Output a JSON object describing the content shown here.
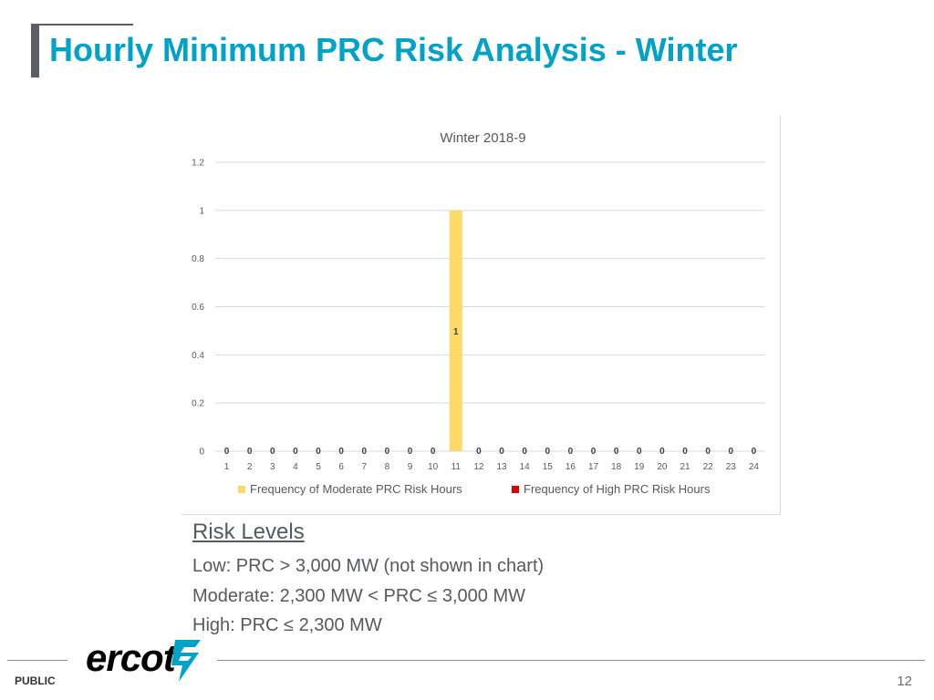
{
  "slide": {
    "title": "Hourly Minimum PRC Risk Analysis - Winter",
    "footer_label": "PUBLIC",
    "page_number": "12",
    "logo_text": "ercot",
    "colors": {
      "title": "#00a2c7",
      "text": "#555a60",
      "frame": "#5a5f66"
    }
  },
  "risk_levels": {
    "heading": "Risk Levels",
    "lines": [
      "Low: PRC > 3,000 MW (not shown in chart)",
      "Moderate: 2,300 MW < PRC ≤ 3,000 MW",
      "High: PRC ≤ 2,300 MW"
    ]
  },
  "chart_data": {
    "type": "bar",
    "title": "Winter 2018-9",
    "xlabel": "",
    "ylabel": "",
    "ylim": [
      0,
      1.2
    ],
    "yticks": [
      "0",
      "0.2",
      "0.4",
      "0.6",
      "0.8",
      "1",
      "1.2"
    ],
    "grid": true,
    "legend_position": "bottom",
    "categories": [
      "1",
      "2",
      "3",
      "4",
      "5",
      "6",
      "7",
      "8",
      "9",
      "10",
      "11",
      "12",
      "13",
      "14",
      "15",
      "16",
      "17",
      "18",
      "19",
      "20",
      "21",
      "22",
      "23",
      "24"
    ],
    "series": [
      {
        "name": "Frequency of Moderate PRC Risk Hours",
        "color": "#ffd966",
        "values": [
          0,
          0,
          0,
          0,
          0,
          0,
          0,
          0,
          0,
          0,
          1,
          0,
          0,
          0,
          0,
          0,
          0,
          0,
          0,
          0,
          0,
          0,
          0,
          0
        ]
      },
      {
        "name": "Frequency of High PRC Risk Hours",
        "color": "#e00000",
        "values": [
          0,
          0,
          0,
          0,
          0,
          0,
          0,
          0,
          0,
          0,
          0,
          0,
          0,
          0,
          0,
          0,
          0,
          0,
          0,
          0,
          0,
          0,
          0,
          0
        ]
      }
    ],
    "data_labels": [
      "0",
      "0",
      "0",
      "0",
      "0",
      "0",
      "0",
      "0",
      "0",
      "0",
      "1",
      "0",
      "0",
      "0",
      "0",
      "0",
      "0",
      "0",
      "0",
      "0",
      "0",
      "0",
      "0",
      "0"
    ]
  }
}
